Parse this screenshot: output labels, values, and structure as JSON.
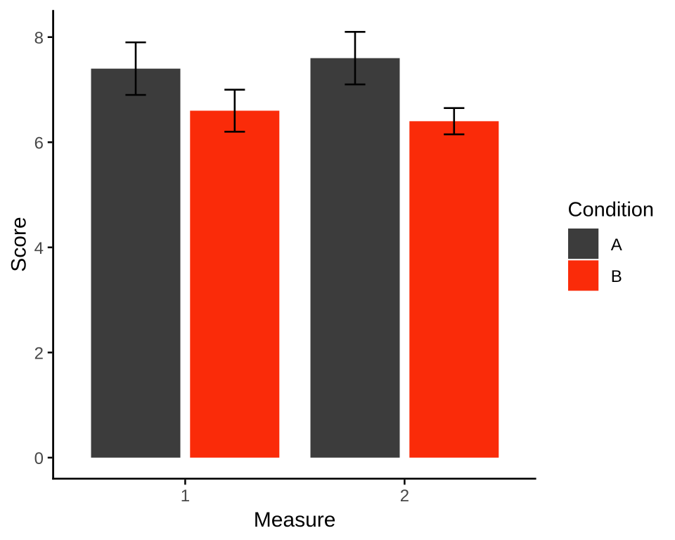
{
  "chart_data": {
    "type": "bar",
    "title": "",
    "xlabel": "Measure",
    "ylabel": "Score",
    "legend_title": "Condition",
    "legend_position": "right",
    "grid": false,
    "categories": [
      "1",
      "2"
    ],
    "series": [
      {
        "name": "A",
        "color": "#3C3C3C",
        "values": [
          7.4,
          7.6
        ],
        "error_low": [
          6.9,
          7.1
        ],
        "error_high": [
          7.9,
          8.1
        ]
      },
      {
        "name": "B",
        "color": "#FA2B09",
        "values": [
          6.6,
          6.4
        ],
        "error_low": [
          6.2,
          6.15
        ],
        "error_high": [
          7.0,
          6.65
        ]
      }
    ],
    "error_bars": true,
    "y_ticks": [
      0,
      2,
      4,
      6,
      8
    ],
    "y_tick_labels": [
      "0",
      "2",
      "4",
      "6",
      "8"
    ],
    "ylim": [
      -0.4,
      8.5
    ]
  },
  "colors": {
    "background": "#FFFFFF",
    "axis_line": "#000000",
    "tick_mark": "#000000",
    "tick_label": "#474747",
    "axis_title": "#000000",
    "legend_title": "#000000",
    "legend_label": "#000000",
    "error_bar": "#000000"
  }
}
